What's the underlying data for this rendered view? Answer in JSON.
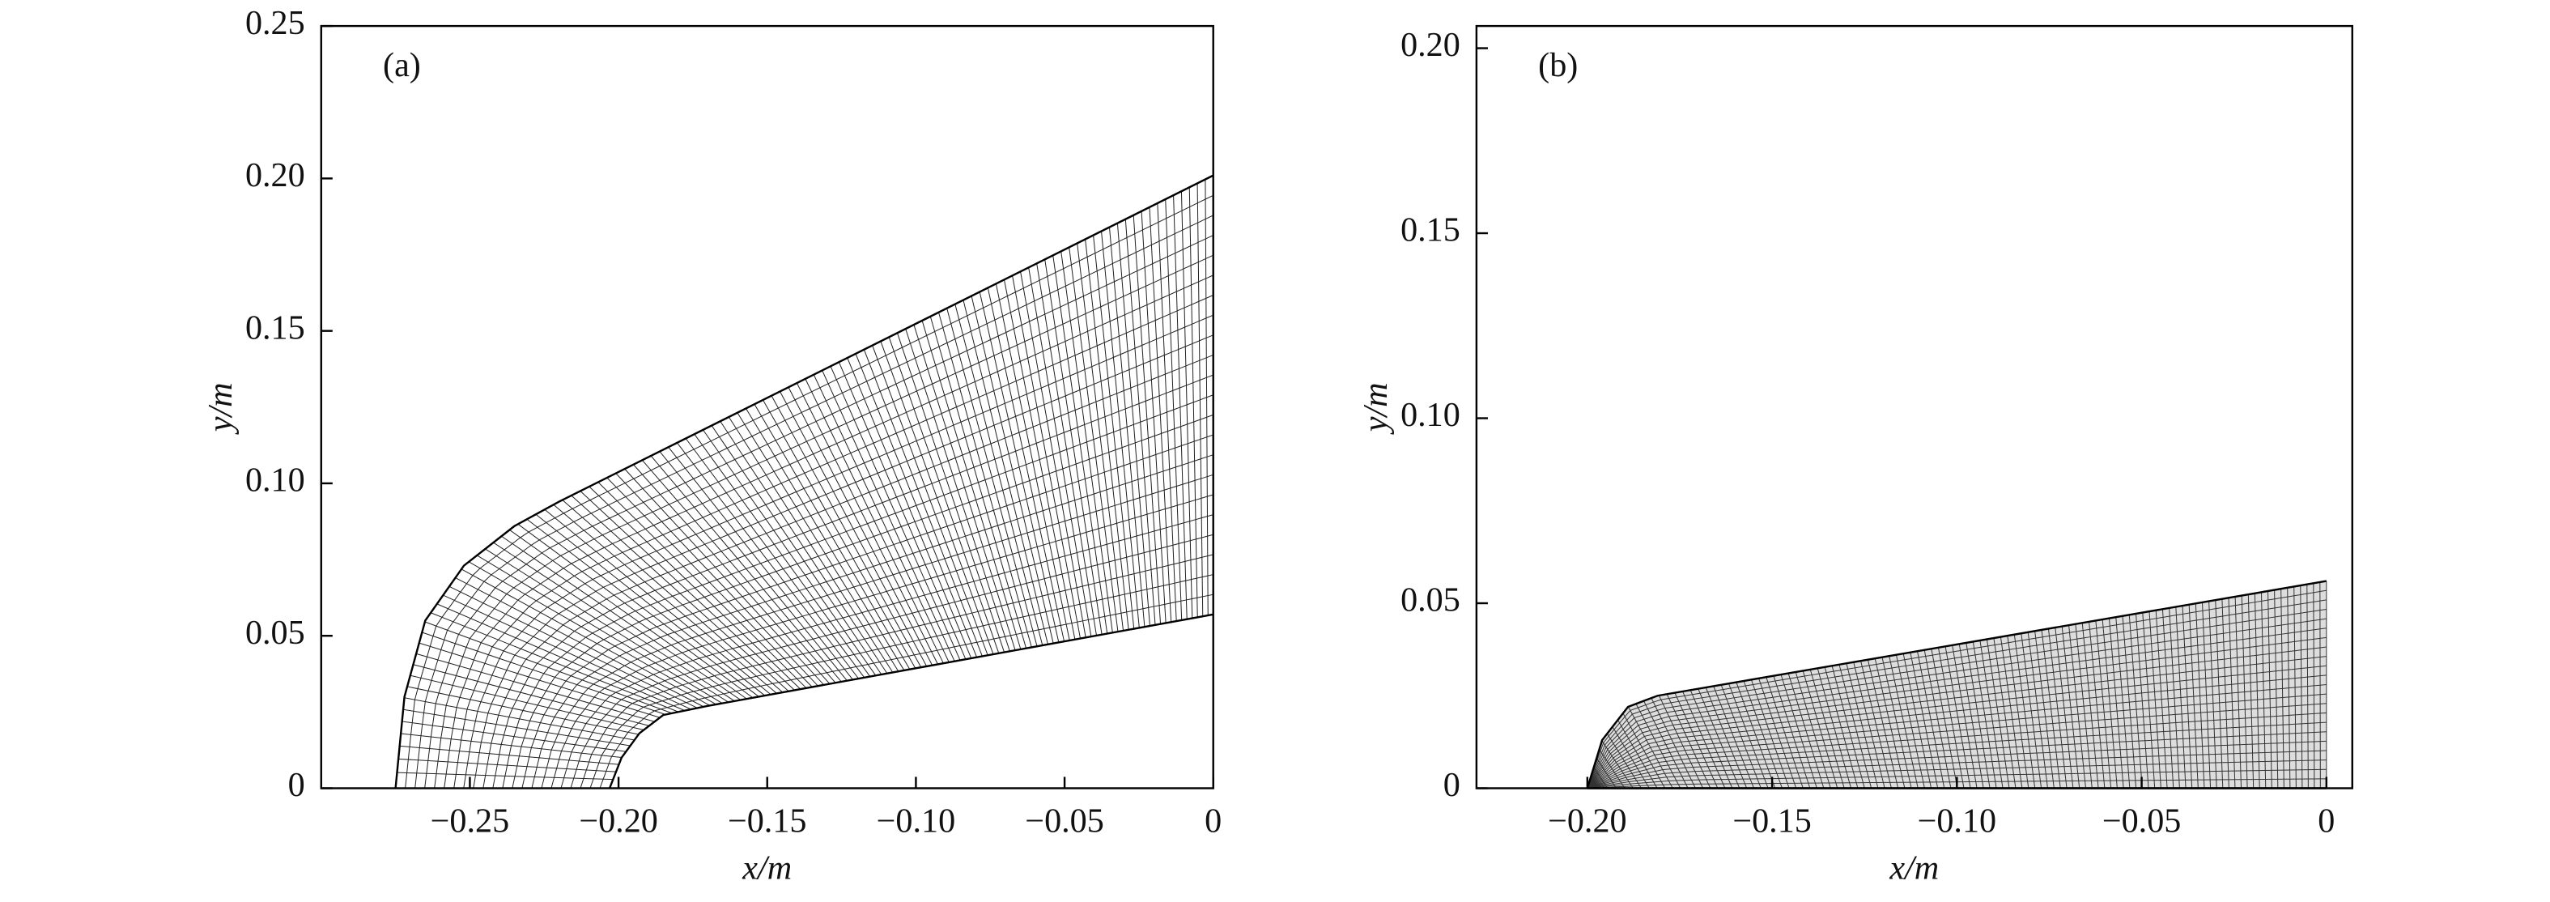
{
  "chart_data": [
    {
      "type": "mesh",
      "label": "(a)",
      "xlabel": "x/m",
      "ylabel": "y/m",
      "xlim": [
        -0.3,
        0
      ],
      "ylim": [
        0,
        0.25
      ],
      "xticks": [
        {
          "value": -0.25,
          "label": "−0.25"
        },
        {
          "value": -0.2,
          "label": "−0.20"
        },
        {
          "value": -0.15,
          "label": "−0.15"
        },
        {
          "value": -0.1,
          "label": "−0.10"
        },
        {
          "value": -0.05,
          "label": "−0.05"
        },
        0
      ],
      "yticks": [
        0,
        0.05,
        {
          "value": 0.1,
          "label": "0.10"
        },
        0.15,
        {
          "value": 0.2,
          "label": "0.20"
        },
        0.25
      ],
      "color": "#222222",
      "fill": "#ffffff",
      "body": {
        "x": [
          -0.203,
          -0.199,
          -0.193,
          -0.185,
          -0.17,
          0
        ],
        "y": [
          0,
          0.01,
          0.018,
          0.024,
          0.027,
          0.057
        ]
      },
      "shock": {
        "x": [
          -0.275,
          -0.272,
          -0.265,
          -0.252,
          -0.235,
          -0.22,
          0
        ],
        "y": [
          0,
          0.03,
          0.055,
          0.073,
          0.086,
          0.094,
          0.201
        ]
      }
    },
    {
      "type": "mesh",
      "label": "(b)",
      "xlabel": "x/m",
      "ylabel": "y/m",
      "xlim": [
        -0.23,
        0.007
      ],
      "ylim": [
        0,
        0.206
      ],
      "xticks": [
        {
          "value": -0.2,
          "label": "−0.20"
        },
        {
          "value": -0.15,
          "label": "−0.15"
        },
        {
          "value": -0.1,
          "label": "−0.10"
        },
        {
          "value": -0.05,
          "label": "−0.05"
        },
        0
      ],
      "yticks": [
        0,
        0.05,
        {
          "value": 0.1,
          "label": "0.10"
        },
        0.15,
        {
          "value": 0.2,
          "label": "0.20"
        }
      ],
      "color": "#333333",
      "fill": "#dddddd",
      "body": {
        "x": [
          -0.2,
          0
        ],
        "y": [
          0,
          0
        ]
      },
      "shock": {
        "x": [
          -0.2,
          -0.196,
          -0.189,
          -0.181,
          0
        ],
        "y": [
          0,
          0.013,
          0.022,
          0.025,
          0.056
        ]
      }
    }
  ]
}
